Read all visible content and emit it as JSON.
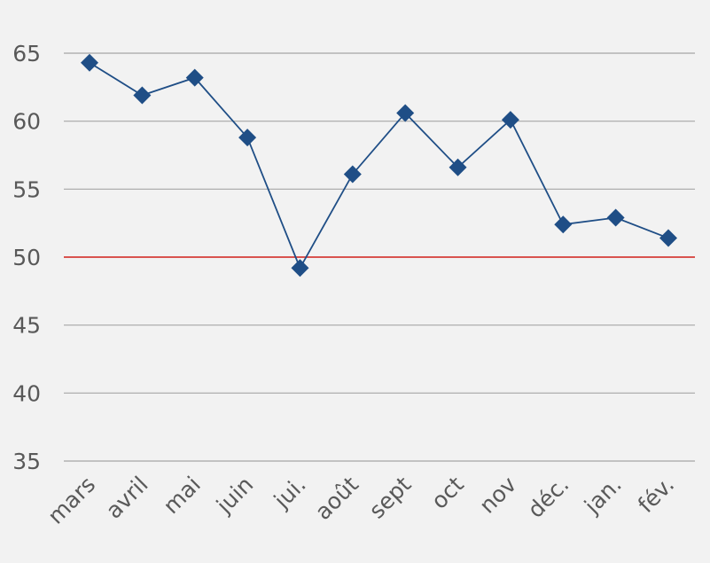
{
  "chart_data": {
    "type": "line",
    "categories": [
      "mars",
      "avril",
      "mai",
      "juin",
      "jui.",
      "août",
      "sept",
      "oct",
      "nov",
      "déc.",
      "jan.",
      "fév."
    ],
    "series": [
      {
        "values": [
          64.3,
          61.9,
          63.2,
          58.8,
          49.2,
          56.1,
          60.6,
          56.6,
          60.1,
          52.4,
          52.9,
          51.4
        ],
        "color": "#1f4e86",
        "marker": "diamond"
      }
    ],
    "reference_line": {
      "value": 50,
      "color": "#d9534f"
    },
    "ylim": [
      35,
      65
    ],
    "yticks": [
      35,
      40,
      45,
      50,
      55,
      60,
      65
    ],
    "title": "",
    "xlabel": "",
    "ylabel": "",
    "grid": true,
    "grid_color": "#a6a6a6",
    "background": "#f2f2f2"
  }
}
